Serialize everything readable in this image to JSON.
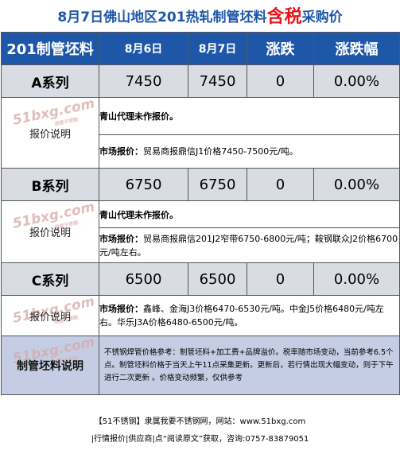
{
  "title": {
    "prefix": "8月7日佛山地区201热轧制管坯料",
    "highlight": "含税",
    "suffix": "采购价"
  },
  "columns": [
    "201制管坯料",
    "8月6日",
    "8月7日",
    "涨跌",
    "涨跌幅"
  ],
  "rows": [
    {
      "name": "A系列",
      "prev": "7450",
      "curr": "7450",
      "change": "0",
      "pct": "0.00%",
      "note_label": "报价说明",
      "note1": "青山代理未作报价。",
      "note2_bold": "市场报价：",
      "note2_text": "贸易商报鼎信J1价格7450-7500元/吨。"
    },
    {
      "name": "B系列",
      "prev": "6750",
      "curr": "6750",
      "change": "0",
      "pct": "0.00%",
      "note_label": "报价说明",
      "note1": "青山代理未作报价。",
      "note2_bold": "市场报价：",
      "note2_text": "贸易商报鼎信201J2窄带6750-6800元/吨；鞍钢联众J2价格6700元/吨左右。"
    },
    {
      "name": "C系列",
      "prev": "6500",
      "curr": "6500",
      "change": "0",
      "pct": "0.00%",
      "note_label": "报价说明",
      "note2_bold": "市场报价：",
      "note2_text": "鑫峰、金海J3价格6470-6530元/吨。中金J5价格6480元/吨左右。华乐J3A价格6480-6500元/吨。"
    }
  ],
  "footer": {
    "label": "制管坯料说明",
    "text": "不锈钢焊管价格参考：制管坯料+加工费+品牌溢价。税率随市场变动，当前参考6.5个点。制管坯料价格于当天上午11点采集更新。更新后，若行情出现大幅变动，则于下午进行二次更新 。价格变动频繁，仅供参考"
  },
  "watermark": {
    "main": "51bxg.com",
    "sub": "我要不锈钢"
  },
  "bottom": {
    "line1": "【51不锈钢】隶属我要不锈钢网，网站：www.51bxg.com",
    "line2": "|行情报价|供应商|点“阅读原文”获取，咨询:0757-83879051"
  }
}
